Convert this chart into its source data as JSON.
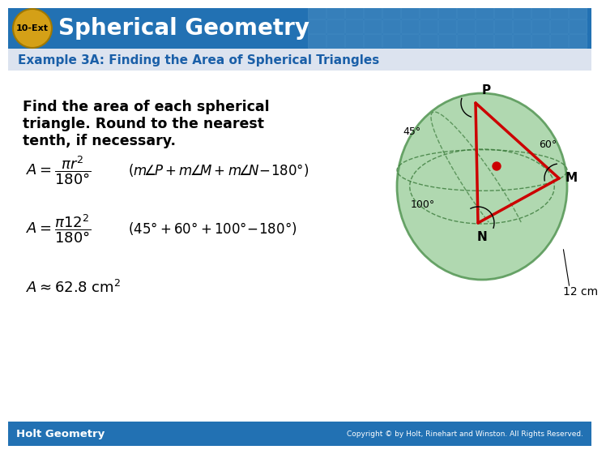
{
  "title_badge_text": "10-Ext",
  "title_text": "Spherical Geometry",
  "title_bg_color": "#2271b3",
  "title_badge_color": "#D4A017",
  "subtitle_text": "Example 3A: Finding the Area of Spherical Triangles",
  "subtitle_color": "#1a5fa8",
  "subtitle_bg": "#dce3ef",
  "body_bg": "#ffffff",
  "body_text_line1": "Find the area of each spherical",
  "body_text_line2": "triangle. Round to the nearest",
  "body_text_line3": "tenth, if necessary.",
  "footer_left": "Holt Geometry",
  "footer_right": "Copyright © by Holt, Rinehart and Winston. All Rights Reserved.",
  "footer_bg": "#2271b3",
  "sphere_color": "#a8d4a8",
  "sphere_edge_color": "#5a9a5a",
  "triangle_color": "#cc0000",
  "radius_label": "12 cm",
  "tile_color": "#4a8ec2",
  "tile_edge_color": "#5599cc"
}
